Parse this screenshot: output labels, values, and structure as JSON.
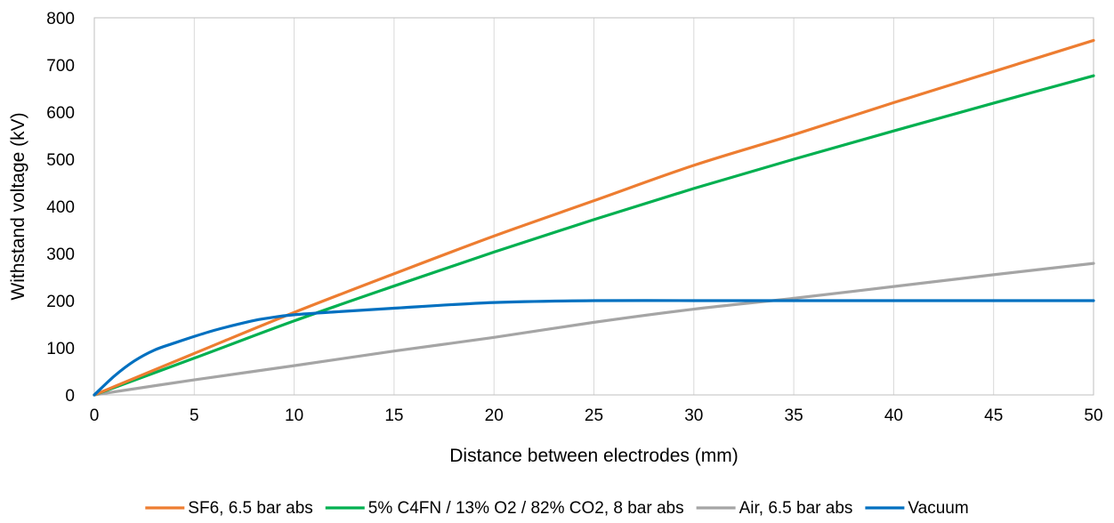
{
  "chart_data": {
    "type": "line",
    "title": "",
    "xlabel": "Distance between electrodes (mm)",
    "ylabel": "Withstand voltage (kV)",
    "xlim": [
      0,
      50
    ],
    "ylim": [
      0,
      800
    ],
    "xticks": [
      "0",
      "5",
      "10",
      "15",
      "20",
      "25",
      "30",
      "35",
      "40",
      "45",
      "50"
    ],
    "yticks": [
      "0",
      "100",
      "200",
      "300",
      "400",
      "500",
      "600",
      "700",
      "800"
    ],
    "grid": "vertical gridlines",
    "legend_position": "bottom",
    "series": [
      {
        "name": "SF6, 6.5 bar abs",
        "color": "#ED7D31",
        "x": [
          0,
          5,
          10,
          15,
          20,
          25,
          30,
          35,
          40,
          45,
          50
        ],
        "y": [
          0,
          88,
          175,
          257,
          337,
          412,
          487,
          552,
          620,
          686,
          752
        ]
      },
      {
        "name": "5% C4FN / 13% O2 / 82% CO2, 8 bar abs",
        "color": "#00B050",
        "x": [
          0,
          5,
          10,
          15,
          20,
          25,
          30,
          35,
          40,
          45,
          50
        ],
        "y": [
          0,
          78,
          157,
          231,
          303,
          372,
          438,
          500,
          560,
          619,
          677
        ]
      },
      {
        "name": "Air, 6.5 bar abs",
        "color": "#A5A5A5",
        "x": [
          0,
          5,
          10,
          15,
          20,
          25,
          30,
          35,
          40,
          45,
          50
        ],
        "y": [
          0,
          32,
          62,
          93,
          122,
          154,
          182,
          205,
          230,
          255,
          279
        ]
      },
      {
        "name": "Vacuum",
        "color": "#0070C0",
        "x": [
          0,
          1,
          2,
          3,
          4,
          5,
          6,
          7,
          8,
          9,
          10,
          12,
          15,
          20,
          25,
          30,
          35,
          40,
          45,
          50
        ],
        "y": [
          0,
          40,
          72,
          95,
          110,
          124,
          137,
          148,
          158,
          165,
          170,
          176,
          184,
          196,
          200,
          200,
          200,
          200,
          200,
          200
        ]
      }
    ]
  }
}
